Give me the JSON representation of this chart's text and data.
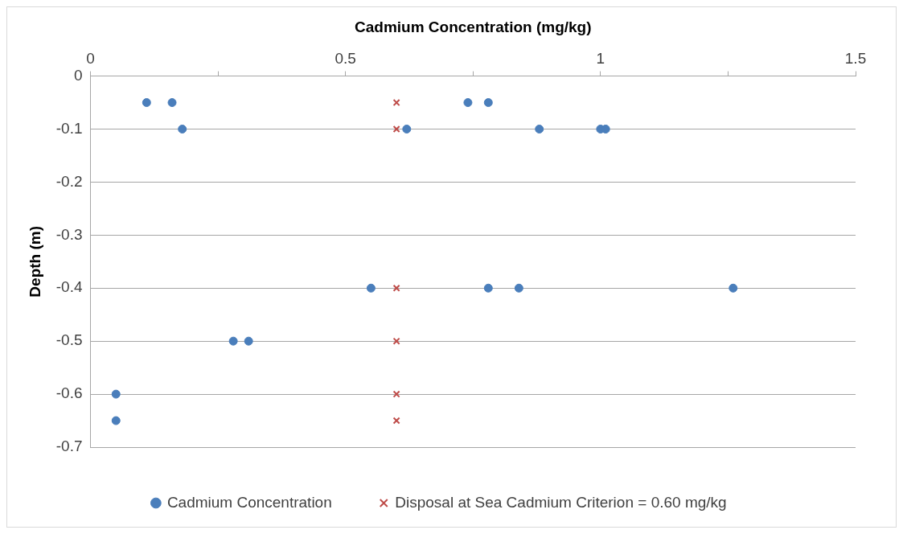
{
  "chart_data": {
    "type": "scatter",
    "xlabel": "Cadmium Concentration (mg/kg)",
    "ylabel": "Depth (m)",
    "xlim": [
      0,
      1.5
    ],
    "xticks": [
      0,
      {
        "value": 0.25,
        "label": null
      },
      0.5,
      {
        "value": 0.75,
        "label": null
      },
      1,
      {
        "value": 1.25,
        "label": null
      },
      1.5
    ],
    "ylim": [
      -0.7,
      0
    ],
    "yticks": [
      0,
      -0.1,
      -0.2,
      -0.3,
      -0.4,
      -0.5,
      -0.6,
      -0.7
    ],
    "grid": "y",
    "legend": "bottom",
    "series": [
      {
        "name": "Cadmium Concentration",
        "color": "#4a7ebb",
        "marker": "circle",
        "x": [
          0.11,
          0.16,
          0.74,
          0.78,
          0.18,
          0.62,
          0.88,
          1.0,
          1.01,
          0.55,
          0.78,
          0.84,
          1.26,
          0.28,
          0.31,
          0.05,
          0.05
        ],
        "values": [
          -0.05,
          -0.05,
          -0.05,
          -0.05,
          -0.1,
          -0.1,
          -0.1,
          -0.1,
          -0.1,
          -0.4,
          -0.4,
          -0.4,
          -0.4,
          -0.5,
          -0.5,
          -0.6,
          -0.65
        ]
      },
      {
        "name": "Disposal at Sea Cadmium Criterion = 0.60 mg/kg",
        "color": "#be4b48",
        "marker": "cross",
        "x": [
          0.6,
          0.6,
          0.6,
          0.6,
          0.6,
          0.6
        ],
        "values": [
          -0.05,
          -0.1,
          -0.4,
          -0.5,
          -0.6,
          -0.65
        ]
      }
    ]
  }
}
